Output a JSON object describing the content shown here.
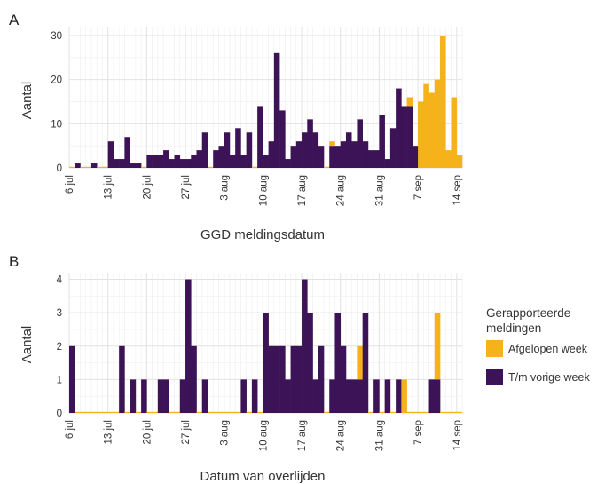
{
  "colors": {
    "current": "#f5b21b",
    "previous": "#3d1357"
  },
  "legend": {
    "title_line1": "Gerapporteerde",
    "title_line2": "meldingen",
    "items": [
      {
        "label": "Afgelopen week",
        "color": "#f5b21b"
      },
      {
        "label": "T/m vorige week",
        "color": "#3d1357"
      }
    ]
  },
  "chart_data": [
    {
      "panel": "A",
      "type": "bar",
      "stacked": true,
      "xlabel": "GGD meldingsdatum",
      "ylabel": "Aantal",
      "ylim": [
        0,
        32
      ],
      "yticks": [
        0,
        10,
        20,
        30
      ],
      "xticks": [
        "6 jul",
        "13 jul",
        "20 jul",
        "27 jul",
        "3 aug",
        "10 aug",
        "17 aug",
        "24 aug",
        "31 aug",
        "7 sep",
        "14 sep"
      ],
      "x_start": "2020-07-06",
      "series": [
        {
          "name": "T/m vorige week",
          "values": [
            0,
            1,
            0,
            0,
            1,
            0,
            0,
            6,
            2,
            2,
            7,
            1,
            1,
            0,
            3,
            3,
            3,
            4,
            2,
            3,
            2,
            2,
            3,
            4,
            8,
            0,
            4,
            5,
            8,
            3,
            9,
            3,
            8,
            0,
            14,
            3,
            6,
            26,
            13,
            2,
            5,
            6,
            8,
            11,
            8,
            5,
            0,
            5,
            5,
            6,
            8,
            6,
            11,
            6,
            4,
            4,
            12,
            2,
            9,
            18,
            14,
            14,
            5,
            0,
            0,
            0,
            0,
            0,
            0,
            0,
            0
          ]
        },
        {
          "name": "Afgelopen week",
          "values": [
            0,
            0,
            0,
            0,
            0,
            0,
            0,
            0,
            0,
            0,
            0,
            0,
            0,
            0,
            0,
            0,
            0,
            0,
            0,
            0,
            0,
            0,
            0,
            0,
            0,
            0,
            0,
            0,
            0,
            0,
            0,
            0,
            0,
            0,
            0,
            0,
            0,
            0,
            0,
            0,
            0,
            0,
            0,
            0,
            0,
            0,
            0,
            1,
            0,
            0,
            0,
            0,
            0,
            0,
            0,
            0,
            0,
            0,
            0,
            0,
            0,
            2,
            0,
            15,
            19,
            17,
            20,
            30,
            4,
            16,
            3
          ]
        }
      ]
    },
    {
      "panel": "B",
      "type": "bar",
      "stacked": true,
      "xlabel": "Datum van overlijden",
      "ylabel": "Aantal",
      "ylim": [
        0,
        4.2
      ],
      "yticks": [
        0,
        1,
        2,
        3,
        4
      ],
      "xticks": [
        "6 jul",
        "13 jul",
        "20 jul",
        "27 jul",
        "3 aug",
        "10 aug",
        "17 aug",
        "24 aug",
        "31 aug",
        "7 sep",
        "14 sep"
      ],
      "x_start": "2020-07-06",
      "series": [
        {
          "name": "T/m vorige week",
          "values": [
            2,
            0,
            0,
            0,
            0,
            0,
            0,
            0,
            0,
            2,
            0,
            1,
            0,
            1,
            0,
            0,
            1,
            1,
            0,
            0,
            1,
            4,
            2,
            0,
            1,
            0,
            0,
            0,
            0,
            0,
            0,
            1,
            0,
            1,
            0,
            3,
            2,
            2,
            2,
            1,
            2,
            2,
            4,
            3,
            1,
            2,
            0,
            1,
            3,
            2,
            1,
            1,
            1,
            3,
            0,
            1,
            0,
            1,
            0,
            1,
            0,
            0,
            0,
            0,
            0,
            1,
            1,
            0,
            0,
            0,
            0
          ]
        },
        {
          "name": "Afgelopen week",
          "values": [
            0,
            0,
            0,
            0,
            0,
            0,
            0,
            0,
            0,
            0,
            0,
            0,
            0,
            0,
            0,
            0,
            0,
            0,
            0,
            0,
            0,
            0,
            0,
            0,
            0,
            0,
            0,
            0,
            0,
            0,
            0,
            0,
            0,
            0,
            0,
            0,
            0,
            0,
            0,
            0,
            0,
            0,
            0,
            0,
            0,
            0,
            0,
            0,
            0,
            0,
            0,
            0,
            1,
            0,
            0,
            0,
            0,
            0,
            0,
            0,
            1,
            0,
            0,
            0,
            0,
            0,
            2,
            0,
            0,
            0,
            0
          ]
        }
      ]
    }
  ]
}
